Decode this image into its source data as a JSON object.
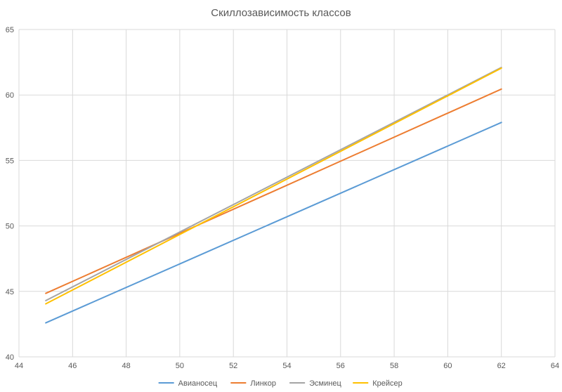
{
  "chart_data": {
    "type": "line",
    "title": "Скиллозависимость классов",
    "xlabel": "",
    "ylabel": "",
    "xlim": [
      44,
      64
    ],
    "ylim": [
      40,
      65
    ],
    "x_ticks": [
      "44",
      "46",
      "48",
      "50",
      "52",
      "54",
      "56",
      "58",
      "60",
      "62",
      "64"
    ],
    "y_ticks": [
      "40",
      "45",
      "50",
      "55",
      "60",
      "65"
    ],
    "grid": true,
    "legend_position": "bottom",
    "series": [
      {
        "name": "Авианосец",
        "color": "#5B9BD5",
        "x": [
          45,
          62
        ],
        "y": [
          42.6,
          57.9
        ]
      },
      {
        "name": "Линкор",
        "color": "#ED7D31",
        "x": [
          45,
          62
        ],
        "y": [
          44.85,
          60.45
        ]
      },
      {
        "name": "Эсминец",
        "color": "#A5A5A5",
        "x": [
          45,
          62
        ],
        "y": [
          44.3,
          62.1
        ]
      },
      {
        "name": "Крейсер",
        "color": "#FFC000",
        "x": [
          45,
          62
        ],
        "y": [
          44.05,
          62.05
        ]
      }
    ]
  }
}
